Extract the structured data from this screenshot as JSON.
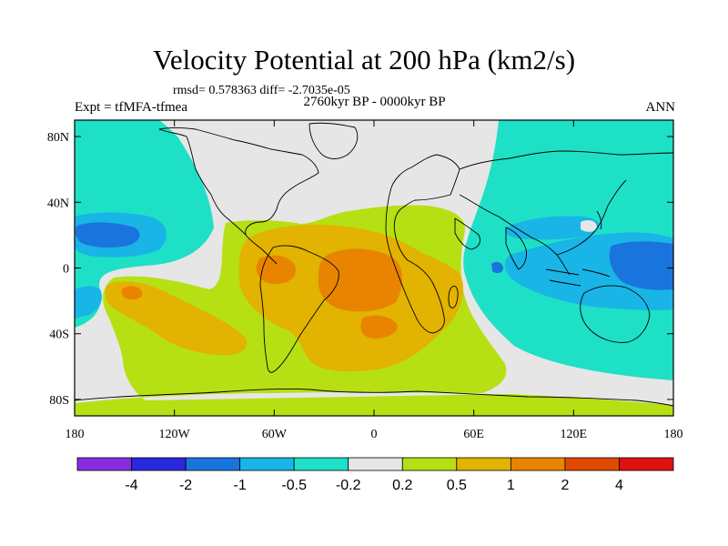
{
  "title": "Velocity Potential at 200 hPa (km2/s)",
  "stats": "rmsd= 0.578363 diff= -2.7035e-05",
  "left_label": "Expt = tfMFA-tfmea",
  "center_label": "2760kyr BP - 0000kyr BP",
  "right_label": "ANN",
  "lat_ticks": [
    {
      "value": 80,
      "label": "80N"
    },
    {
      "value": 40,
      "label": "40N"
    },
    {
      "value": 0,
      "label": "0"
    },
    {
      "value": -40,
      "label": "40S"
    },
    {
      "value": -80,
      "label": "80S"
    }
  ],
  "lon_ticks": [
    {
      "value": -180,
      "label": "180"
    },
    {
      "value": -120,
      "label": "120W"
    },
    {
      "value": -60,
      "label": "60W"
    },
    {
      "value": 0,
      "label": "0"
    },
    {
      "value": 60,
      "label": "60E"
    },
    {
      "value": 120,
      "label": "120E"
    },
    {
      "value": 180,
      "label": "180"
    }
  ],
  "colorbar": {
    "colors": [
      "#8a2be2",
      "#2a28dc",
      "#1a74dd",
      "#19b5e6",
      "#1ee0c6",
      "#e6e6e6",
      "#b6e013",
      "#e2b300",
      "#e88400",
      "#e04a00",
      "#e01010"
    ],
    "labels": [
      "-4",
      "-2",
      "-1",
      "-0.5",
      "-0.2",
      "0.2",
      "0.5",
      "1",
      "2",
      "4"
    ]
  },
  "chart_data": {
    "type": "heatmap",
    "projection": "cylindrical-equidistant",
    "variable": "Velocity Potential at 200 hPa",
    "units": "km2/s",
    "lon_range": [
      -180,
      180
    ],
    "lat_range": [
      -90,
      90
    ],
    "contour_levels": [
      -4,
      -2,
      -1,
      -0.5,
      -0.2,
      0.2,
      0.5,
      1,
      2,
      4
    ],
    "regions": [
      {
        "name": "atlantic-africa-positive",
        "min_level": 0.2
      },
      {
        "name": "south-atlantic-positive-core",
        "min_level": 0.5
      },
      {
        "name": "south-america-positive-core",
        "min_level": 1
      },
      {
        "name": "south-pacific-positive",
        "min_level": 0.5
      },
      {
        "name": "indo-pacific-negative",
        "max_level": -0.2
      },
      {
        "name": "north-pacific-negative-core",
        "max_level": -0.5
      },
      {
        "name": "west-pacific-negative-core",
        "max_level": -0.5
      }
    ]
  }
}
